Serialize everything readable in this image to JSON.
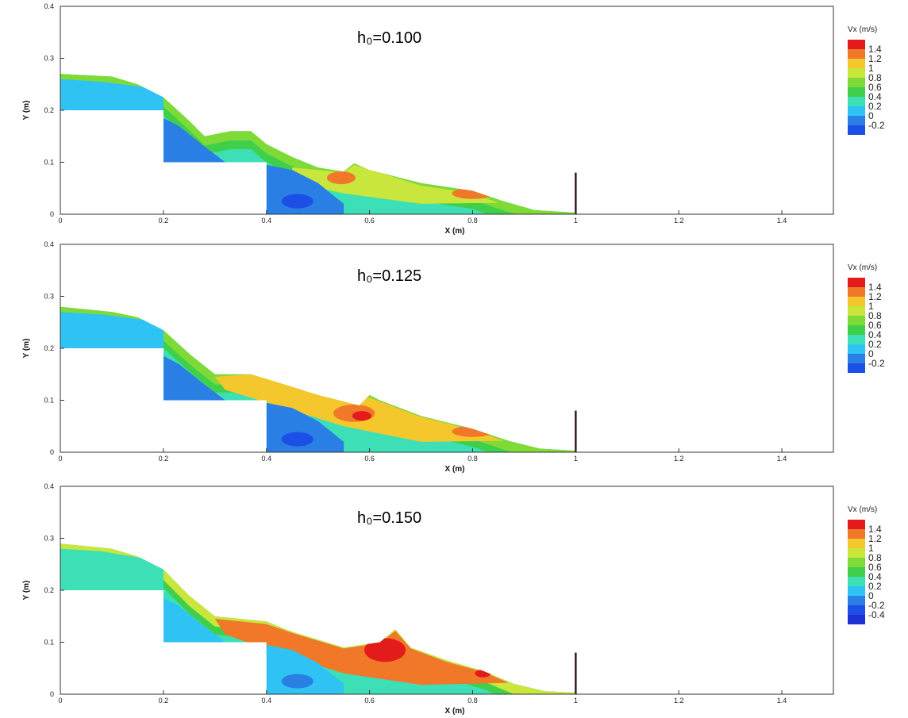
{
  "colors": {
    "v_neg04": "#1e32d2",
    "v_neg02": "#1c4fe6",
    "v_0": "#2a7fe4",
    "v_02": "#2ec3f2",
    "v_04": "#3ddfb6",
    "v_06": "#3fcf4a",
    "v_08": "#7edb37",
    "v_1": "#c8e63c",
    "v_12": "#f4c82c",
    "v_14": "#f07828",
    "v_max": "#e31b1b",
    "gate": "#3a1a1a"
  },
  "chart_data": [
    {
      "type": "heatmap",
      "case_label": "h₀=0.100",
      "xlabel": "X (m)",
      "ylabel": "Y (m)",
      "xlim": [
        0,
        1.5
      ],
      "ylim": [
        0,
        0.4
      ],
      "x_ticks": [
        "0",
        "0.2",
        "0.4",
        "0.6",
        "0.8",
        "1",
        "1.2",
        "1.4"
      ],
      "y_ticks": [
        "0",
        "0.1",
        "0.2",
        "0.3",
        "0.4"
      ],
      "legend": {
        "title": "Vx (m/s)",
        "entries": [
          "1.4",
          "1.2",
          "1",
          "0.8",
          "0.6",
          "0.4",
          "0.2",
          "0",
          "-0.2"
        ]
      },
      "steps": [
        {
          "x": [
            0,
            0.2
          ],
          "y": 0.2
        },
        {
          "x": [
            0.2,
            0.4
          ],
          "y": 0.1
        },
        {
          "x": [
            0.4,
            1.0
          ],
          "y": 0
        }
      ],
      "gate": {
        "x": 1.0,
        "height": 0.08
      },
      "free_surface": [
        [
          0,
          0.27
        ],
        [
          0.1,
          0.265
        ],
        [
          0.15,
          0.25
        ],
        [
          0.2,
          0.225
        ],
        [
          0.25,
          0.18
        ],
        [
          0.28,
          0.15
        ],
        [
          0.33,
          0.16
        ],
        [
          0.37,
          0.16
        ],
        [
          0.4,
          0.135
        ],
        [
          0.45,
          0.11
        ],
        [
          0.5,
          0.09
        ],
        [
          0.55,
          0.082
        ],
        [
          0.57,
          0.098
        ],
        [
          0.6,
          0.085
        ],
        [
          0.7,
          0.06
        ],
        [
          0.8,
          0.045
        ],
        [
          0.86,
          0.025
        ],
        [
          0.92,
          0.008
        ],
        [
          1.0,
          0.003
        ]
      ]
    },
    {
      "type": "heatmap",
      "case_label": "h₀=0.125",
      "xlabel": "X (m)",
      "ylabel": "Y (m)",
      "xlim": [
        0,
        1.5
      ],
      "ylim": [
        0,
        0.4
      ],
      "x_ticks": [
        "0",
        "0.2",
        "0.4",
        "0.6",
        "0.8",
        "1",
        "1.2",
        "1.4"
      ],
      "y_ticks": [
        "0",
        "0.1",
        "0.2",
        "0.3",
        "0.4"
      ],
      "legend": {
        "title": "Vx (m/s)",
        "entries": [
          "1.4",
          "1.2",
          "1",
          "0.8",
          "0.6",
          "0.4",
          "0.2",
          "0",
          "-0.2"
        ]
      },
      "steps": [
        {
          "x": [
            0,
            0.2
          ],
          "y": 0.2
        },
        {
          "x": [
            0.2,
            0.4
          ],
          "y": 0.1
        },
        {
          "x": [
            0.4,
            1.0
          ],
          "y": 0
        }
      ],
      "gate": {
        "x": 1.0,
        "height": 0.08
      },
      "free_surface": [
        [
          0,
          0.28
        ],
        [
          0.1,
          0.27
        ],
        [
          0.15,
          0.26
        ],
        [
          0.2,
          0.235
        ],
        [
          0.25,
          0.19
        ],
        [
          0.3,
          0.15
        ],
        [
          0.37,
          0.15
        ],
        [
          0.42,
          0.135
        ],
        [
          0.5,
          0.11
        ],
        [
          0.58,
          0.09
        ],
        [
          0.6,
          0.11
        ],
        [
          0.62,
          0.1
        ],
        [
          0.7,
          0.07
        ],
        [
          0.8,
          0.045
        ],
        [
          0.87,
          0.022
        ],
        [
          0.93,
          0.007
        ],
        [
          1.0,
          0.003
        ]
      ]
    },
    {
      "type": "heatmap",
      "case_label": "h₀=0.150",
      "xlabel": "X (m)",
      "ylabel": "Y (m)",
      "xlim": [
        0,
        1.5
      ],
      "ylim": [
        0,
        0.4
      ],
      "x_ticks": [
        "0",
        "0.2",
        "0.4",
        "0.6",
        "0.8",
        "1",
        "1.2",
        "1.4"
      ],
      "y_ticks": [
        "0",
        "0.1",
        "0.2",
        "0.3",
        "0.4"
      ],
      "legend": {
        "title": "Vx (m/s)",
        "entries": [
          "1.4",
          "1.2",
          "1",
          "0.8",
          "0.6",
          "0.4",
          "0.2",
          "0",
          "-0.2",
          "-0.4"
        ]
      },
      "steps": [
        {
          "x": [
            0,
            0.2
          ],
          "y": 0.2
        },
        {
          "x": [
            0.2,
            0.4
          ],
          "y": 0.1
        },
        {
          "x": [
            0.4,
            1.0
          ],
          "y": 0
        }
      ],
      "gate": {
        "x": 1.0,
        "height": 0.08
      },
      "free_surface": [
        [
          0,
          0.29
        ],
        [
          0.1,
          0.28
        ],
        [
          0.15,
          0.265
        ],
        [
          0.2,
          0.24
        ],
        [
          0.25,
          0.19
        ],
        [
          0.3,
          0.15
        ],
        [
          0.4,
          0.14
        ],
        [
          0.45,
          0.12
        ],
        [
          0.55,
          0.09
        ],
        [
          0.62,
          0.1
        ],
        [
          0.65,
          0.125
        ],
        [
          0.68,
          0.09
        ],
        [
          0.75,
          0.065
        ],
        [
          0.82,
          0.045
        ],
        [
          0.88,
          0.02
        ],
        [
          0.94,
          0.006
        ],
        [
          1.0,
          0.003
        ]
      ]
    }
  ]
}
